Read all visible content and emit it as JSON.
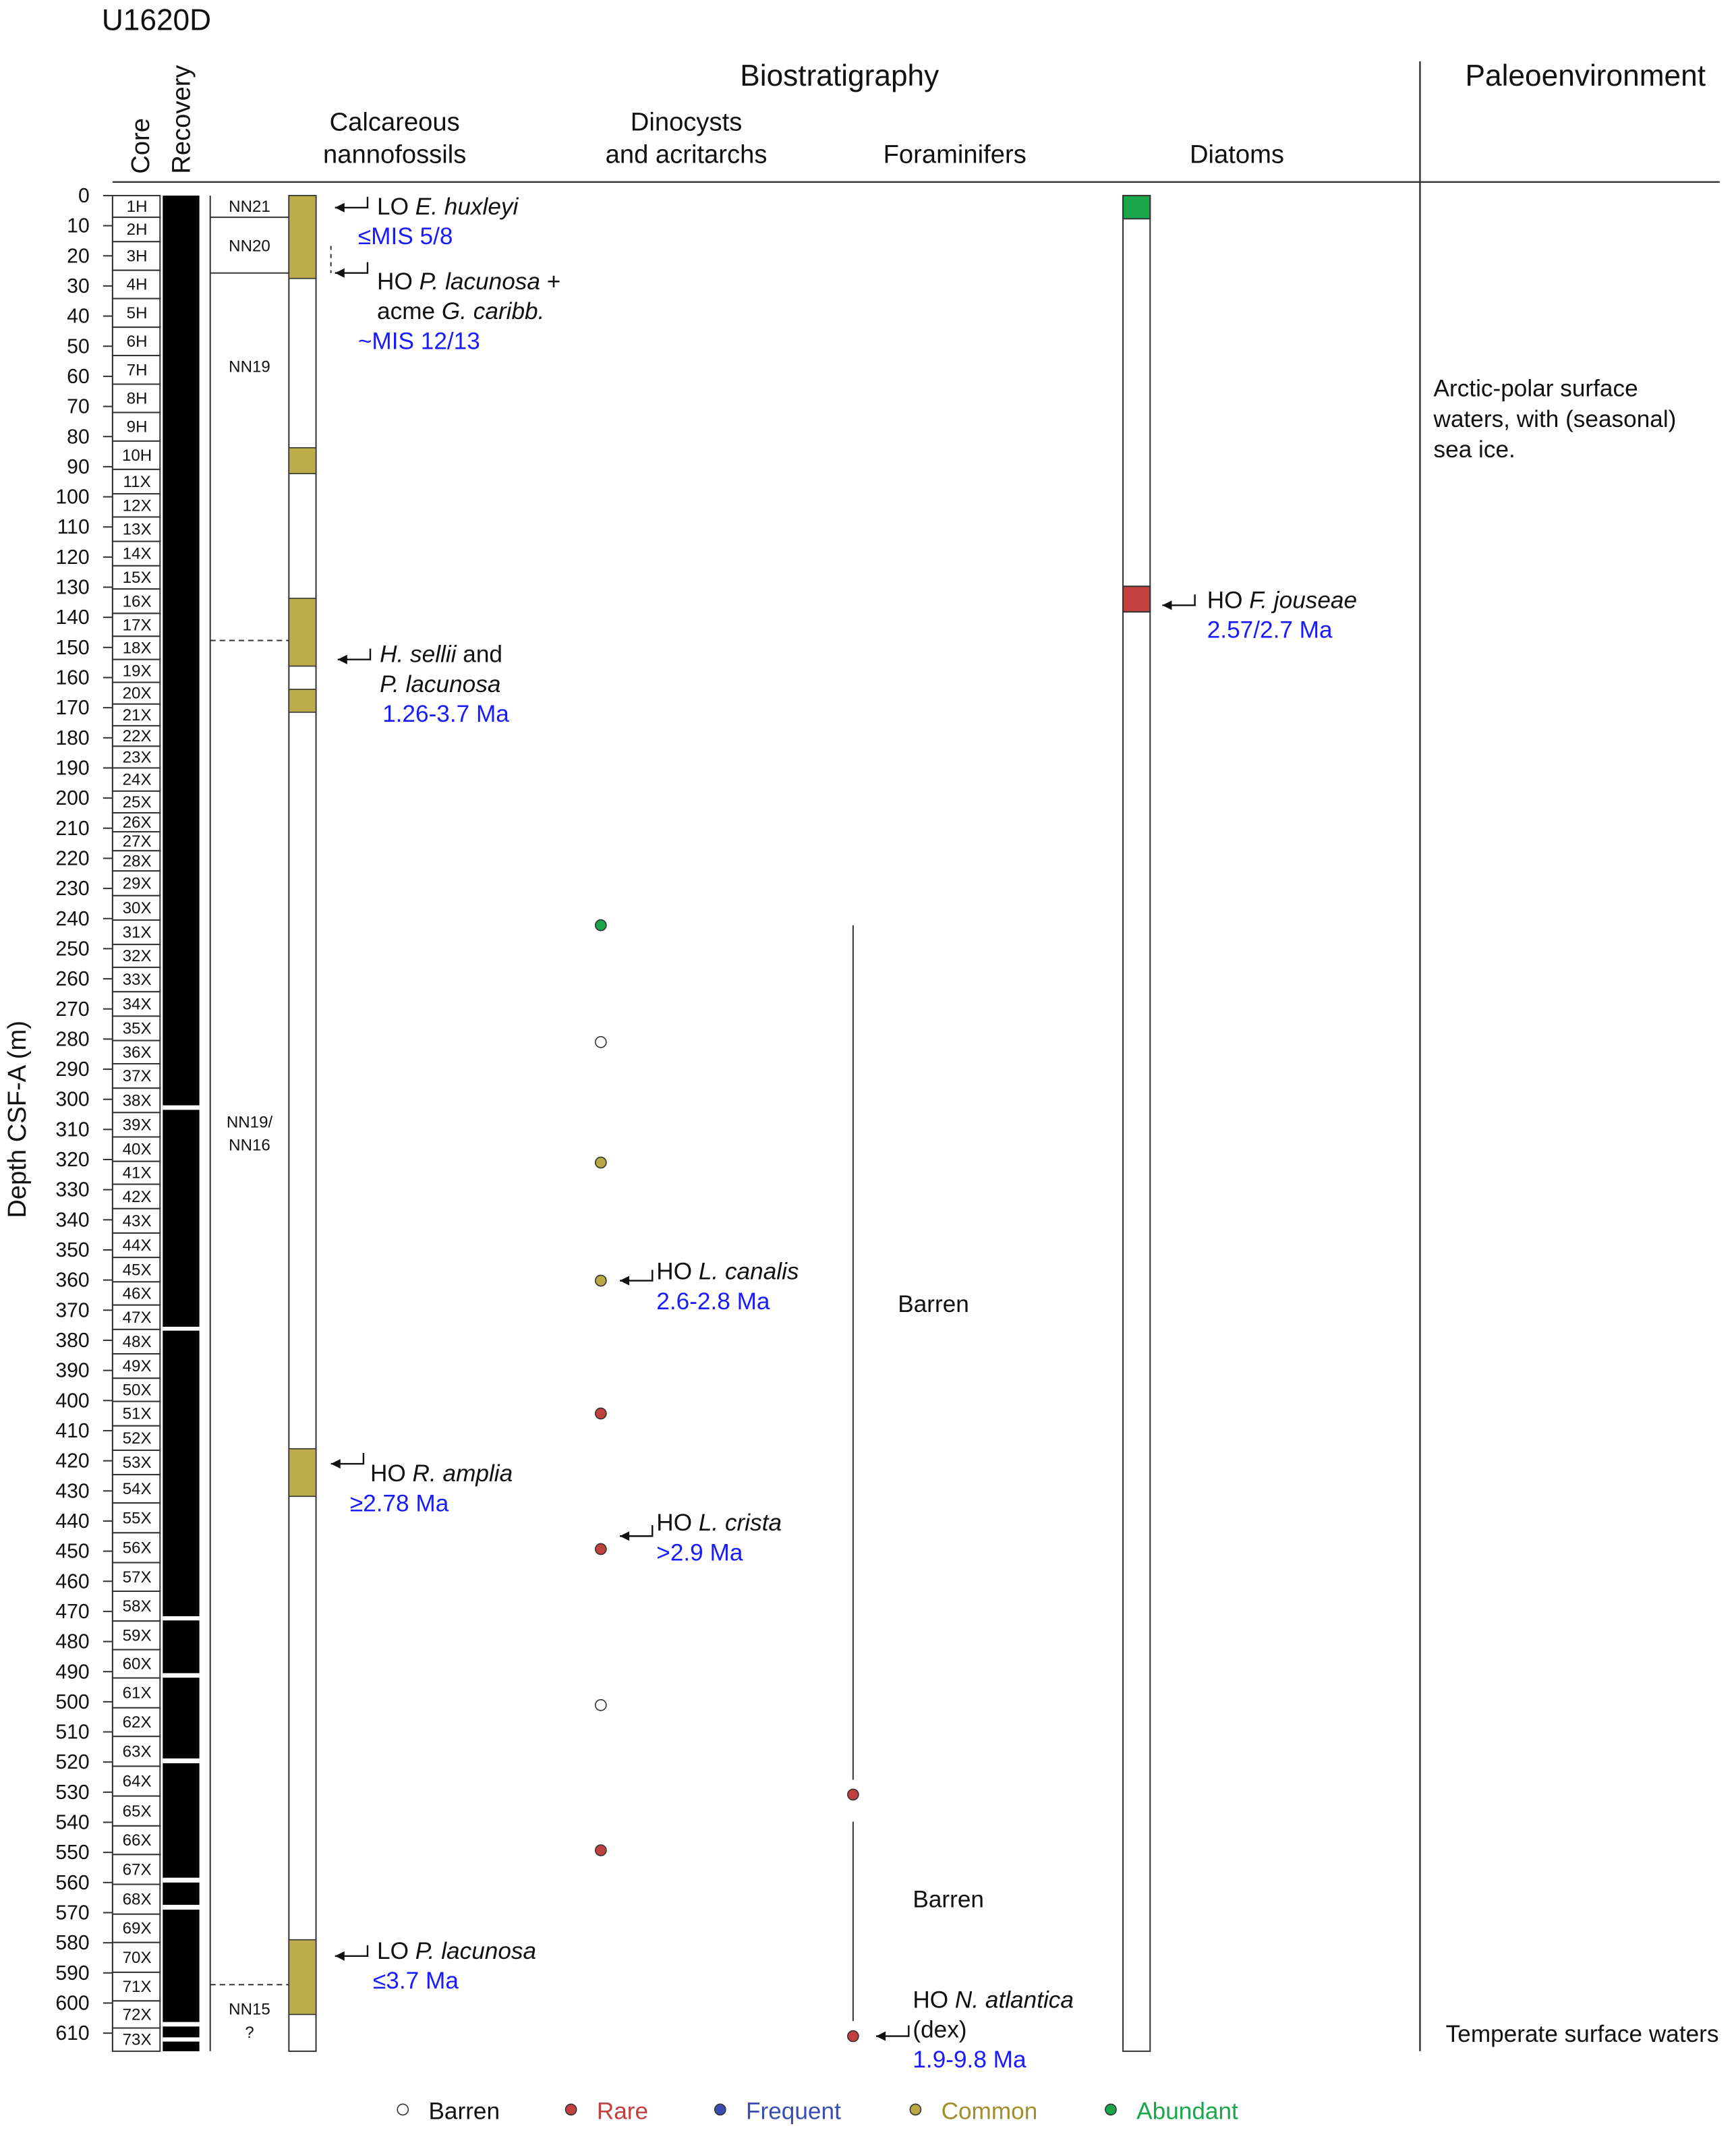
{
  "title": "U1620D",
  "headers": {
    "core": "Core",
    "recovery": "Recovery",
    "biostratigraphy": "Biostratigraphy",
    "paleoenvironment": "Paleoenvironment"
  },
  "depth_axis": {
    "label": "Depth CSF-A (m)",
    "lim": [
      0,
      616
    ],
    "ticks": [
      0,
      10,
      20,
      30,
      40,
      50,
      60,
      70,
      80,
      90,
      100,
      110,
      120,
      130,
      140,
      150,
      160,
      170,
      180,
      190,
      200,
      210,
      220,
      230,
      240,
      250,
      260,
      270,
      280,
      290,
      300,
      310,
      320,
      330,
      340,
      350,
      360,
      370,
      380,
      390,
      400,
      410,
      420,
      430,
      440,
      450,
      460,
      470,
      480,
      490,
      500,
      510,
      520,
      530,
      540,
      550,
      560,
      570,
      580,
      590,
      600,
      610
    ]
  },
  "cores": {
    "labels": [
      "1H",
      "2H",
      "3H",
      "4H",
      "5H",
      "6H",
      "7H",
      "8H",
      "9H",
      "10H",
      "11X",
      "12X",
      "13X",
      "14X",
      "15X",
      "16X",
      "17X",
      "18X",
      "19X",
      "20X",
      "21X",
      "22X",
      "23X",
      "24X",
      "25X",
      "26X",
      "27X",
      "28X",
      "29X",
      "30X",
      "31X",
      "32X",
      "33X",
      "34X",
      "35X",
      "36X",
      "37X",
      "38X",
      "39X",
      "40X",
      "41X",
      "42X",
      "43X",
      "44X",
      "45X",
      "46X",
      "47X",
      "48X",
      "49X",
      "50X",
      "51X",
      "52X",
      "53X",
      "54X",
      "55X",
      "56X",
      "57X",
      "58X",
      "59X",
      "60X",
      "61X",
      "62X",
      "63X",
      "64X",
      "65X",
      "66X",
      "67X",
      "68X",
      "69X",
      "70X",
      "71X",
      "72X",
      "73X"
    ],
    "tops": [
      0,
      7.2,
      15.3,
      24.8,
      34.2,
      43.7,
      53.1,
      62.6,
      72,
      81.5,
      90.9,
      99,
      106.7,
      114.8,
      122.9,
      130.6,
      138.7,
      146.3,
      154,
      161.6,
      168.8,
      176,
      182.8,
      190,
      197.7,
      204.9,
      211.2,
      217.5,
      224.2,
      232.4,
      240.5,
      248.6,
      256.2,
      264.3,
      272.4,
      280.5,
      288.2,
      296.3,
      304.4,
      312.5,
      320.6,
      328.2,
      336.3,
      344.4,
      352.5,
      360.6,
      368.3,
      376.4,
      384.5,
      392.6,
      400.3,
      408.4,
      416.5,
      424.6,
      434,
      443.9,
      453.8,
      463.3,
      473.2,
      482.7,
      492.1,
      502,
      511.5,
      521.4,
      531.3,
      541.2,
      550.7,
      560.6,
      570.5,
      579.9,
      589.8,
      599.3,
      608.3
    ],
    "base": 616
  },
  "recovery_gaps": [
    [
      302,
      303.5
    ],
    [
      375.5,
      376.8
    ],
    [
      471.6,
      473
    ],
    [
      490.5,
      492
    ],
    [
      518.8,
      520.4
    ],
    [
      558.4,
      560
    ],
    [
      567.4,
      569
    ],
    [
      606.3,
      607.8
    ],
    [
      611.4,
      612.8
    ]
  ],
  "nannofossils": {
    "title": [
      "Calcareous",
      "nannofossils"
    ],
    "zones": [
      {
        "lines": [
          "NN21"
        ],
        "top": 0,
        "base": 7.2,
        "base_line": "solid"
      },
      {
        "lines": [
          "NN20"
        ],
        "top": 7.2,
        "base": 25.7,
        "base_line": "solid"
      },
      {
        "lines": [
          "NN19"
        ],
        "top": 25.7,
        "base": 147.7,
        "base_line": "dashed"
      },
      {
        "lines": [
          "NN19/",
          "NN16"
        ],
        "top": 147.7,
        "base": 593.9,
        "base_line": "dashed"
      },
      {
        "lines": [
          "NN15",
          "?"
        ],
        "top": 593.9,
        "base": 616,
        "base_line": "none"
      }
    ],
    "common_color": "#bcad4a",
    "common_intervals": [
      [
        0,
        27.5
      ],
      [
        83.7,
        92.3
      ],
      [
        133.7,
        156.2
      ],
      [
        163.9,
        171.5
      ],
      [
        416,
        431.8
      ],
      [
        579,
        603.8
      ]
    ],
    "uncertain_interval": [
      16.7,
      25.7
    ],
    "datums": [
      {
        "depth": 4,
        "lines": [
          [
            {
              "text": "LO "
            },
            {
              "text": "E. huxleyi",
              "italic": true
            }
          ]
        ],
        "age": "≤MIS 5/8"
      },
      {
        "depth": 25.7,
        "lines": [
          [
            {
              "text": "HO "
            },
            {
              "text": "P. lacunosa",
              "italic": true
            },
            {
              "text": " +"
            }
          ],
          [
            {
              "text": "acme "
            },
            {
              "text": "G. caribb.",
              "italic": true
            }
          ]
        ],
        "age": "~MIS 12/13"
      },
      {
        "depth": 154,
        "lines": [
          [
            {
              "text": "H. sellii",
              "italic": true
            },
            {
              "text": " and"
            }
          ],
          [
            {
              "text": "P. lacunosa",
              "italic": true
            }
          ]
        ],
        "age": "1.26-3.7 Ma"
      },
      {
        "depth": 421,
        "lines": [
          [
            {
              "text": "HO "
            },
            {
              "text": "R. amplia",
              "italic": true
            }
          ]
        ],
        "age": "≥2.78 Ma"
      },
      {
        "depth": 584.4,
        "lines": [
          [
            {
              "text": "LO "
            },
            {
              "text": "P. lacunosa",
              "italic": true
            }
          ]
        ],
        "age": "≤3.7 Ma"
      }
    ]
  },
  "dinocysts": {
    "title": [
      "Dinocysts",
      "and acritarchs"
    ],
    "samples": [
      {
        "depth": 242.2,
        "color": "#1aa64a"
      },
      {
        "depth": 281,
        "color": "#ffffff"
      },
      {
        "depth": 321,
        "color": "#b9a944"
      },
      {
        "depth": 360.2,
        "color": "#b9a944"
      },
      {
        "depth": 404.3,
        "color": "#c0413f"
      },
      {
        "depth": 449.3,
        "color": "#c0413f"
      },
      {
        "depth": 501.1,
        "color": "#ffffff"
      },
      {
        "depth": 549.3,
        "color": "#c0413f"
      }
    ],
    "datums": [
      {
        "depth": 360.2,
        "lines": [
          [
            {
              "text": "HO "
            },
            {
              "text": "L. canalis",
              "italic": true
            }
          ]
        ],
        "age": "2.6-2.8 Ma"
      },
      {
        "depth": 445,
        "lines": [
          [
            {
              "text": "HO "
            },
            {
              "text": "L. crista",
              "italic": true
            }
          ]
        ],
        "age": ">2.9 Ma"
      }
    ]
  },
  "foraminifers": {
    "title": "Foraminifers",
    "barren_intervals": [
      {
        "top": 242.2,
        "base": 525.9,
        "label": "Barren"
      },
      {
        "top": 539.8,
        "base": 606,
        "label": "Barren"
      }
    ],
    "samples": [
      {
        "depth": 530.8,
        "color": "#c0413f"
      },
      {
        "depth": 611,
        "color": "#c0413f"
      }
    ],
    "datums": [
      {
        "depth": 611,
        "lines": [
          [
            {
              "text": "HO "
            },
            {
              "text": "N. atlantica",
              "italic": true
            }
          ],
          [
            {
              "text": "(dex)"
            }
          ]
        ],
        "age": "1.9-9.8 Ma"
      }
    ]
  },
  "diatoms": {
    "title": "Diatoms",
    "intervals": [
      {
        "top": 0,
        "base": 7.7,
        "color": "#1aa64a"
      },
      {
        "top": 129.7,
        "base": 138.2,
        "color": "#c0413f"
      }
    ],
    "datums": [
      {
        "depth": 136,
        "lines": [
          [
            {
              "text": "HO "
            },
            {
              "text": "F. jouseae",
              "italic": true
            }
          ]
        ],
        "age": "2.57/2.7 Ma"
      }
    ]
  },
  "paleoenvironment": {
    "notes": [
      [
        "Arctic-polar surface",
        "waters, with (seasonal)",
        "sea ice."
      ],
      [
        "Temperate surface waters"
      ]
    ]
  },
  "legend": [
    {
      "name": "Barren",
      "color": "#ffffff",
      "text_color": "#111111"
    },
    {
      "name": "Rare",
      "color": "#c0413f",
      "text_color": "#c0413f"
    },
    {
      "name": "Frequent",
      "color": "#3b4db0",
      "text_color": "#3b4db0"
    },
    {
      "name": "Common",
      "color": "#b9a944",
      "text_color": "#a08f2a"
    },
    {
      "name": "Abundant",
      "color": "#1aa64a",
      "text_color": "#1aa64a"
    }
  ]
}
